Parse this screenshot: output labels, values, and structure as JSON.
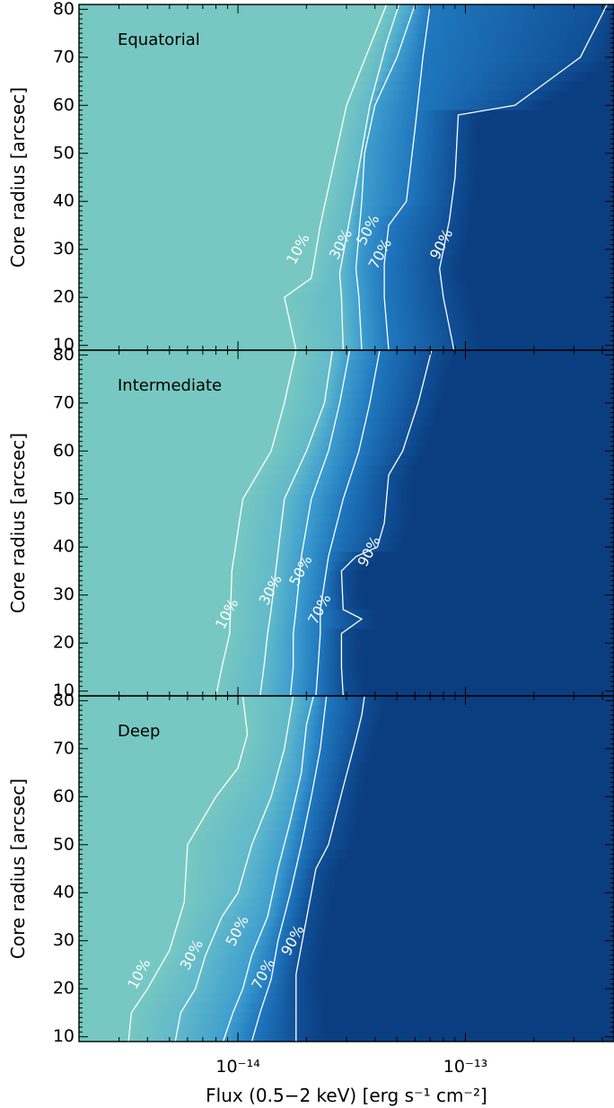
{
  "chart_data": {
    "type": "heatmap",
    "xlabel": "Flux (0.5−2 keV) [erg s⁻¹ cm⁻²]",
    "ylabel": "Core radius [arcsec]",
    "xscale": "log",
    "xlim": [
      2e-15,
      4.5e-13
    ],
    "ylim": [
      9,
      81
    ],
    "x_ticks": [
      {
        "value": 1e-14,
        "label": "10⁻¹⁴"
      },
      {
        "value": 1e-13,
        "label": "10⁻¹³"
      }
    ],
    "y_ticks": [
      10,
      20,
      30,
      40,
      50,
      60,
      70,
      80
    ],
    "colors": {
      "low": "#77c8c2",
      "mid": "#2a8fd0",
      "high": "#0b3e80",
      "contour": "#ffffff"
    },
    "panels": [
      {
        "label": "Equatorial",
        "contours": [
          {
            "level": "10%",
            "points": [
              [
                1.8e-14,
                9
              ],
              [
                1.6e-14,
                20
              ],
              [
                2.1e-14,
                24
              ],
              [
                2.3e-14,
                35
              ],
              [
                3e-14,
                60
              ],
              [
                4.5e-14,
                81
              ]
            ]
          },
          {
            "level": "30%",
            "points": [
              [
                2.9e-14,
                9
              ],
              [
                2.85e-14,
                20
              ],
              [
                2.8e-14,
                25
              ],
              [
                3.2e-14,
                40
              ],
              [
                3.8e-14,
                60
              ],
              [
                4.5e-14,
                73
              ],
              [
                5.1e-14,
                81
              ]
            ]
          },
          {
            "level": "50%",
            "points": [
              [
                3.5e-14,
                9
              ],
              [
                3.4e-14,
                20
              ],
              [
                3.3e-14,
                26
              ],
              [
                3.5e-14,
                40
              ],
              [
                3.6e-14,
                50
              ],
              [
                4e-14,
                60
              ],
              [
                5e-14,
                70
              ],
              [
                6e-14,
                81
              ]
            ]
          },
          {
            "level": "70%",
            "points": [
              [
                4.6e-14,
                9
              ],
              [
                4.4e-14,
                20
              ],
              [
                4.4e-14,
                27
              ],
              [
                4.6e-14,
                35
              ],
              [
                5.5e-14,
                40
              ],
              [
                6e-14,
                55
              ],
              [
                6.5e-14,
                70
              ],
              [
                7e-14,
                81
              ]
            ]
          },
          {
            "level": "90%",
            "points": [
              [
                8.9e-14,
                9
              ],
              [
                8e-14,
                20
              ],
              [
                7.7e-14,
                26
              ],
              [
                8.5e-14,
                36
              ],
              [
                9e-14,
                45
              ],
              [
                9.3e-14,
                58
              ],
              [
                1.65e-13,
                60
              ],
              [
                3.2e-13,
                70
              ],
              [
                4.2e-13,
                81
              ]
            ]
          }
        ],
        "contour_labels": [
          {
            "level": "10%",
            "x": 1.85e-14,
            "y": 30
          },
          {
            "level": "30%",
            "x": 2.85e-14,
            "y": 31
          },
          {
            "level": "50%",
            "x": 3.75e-14,
            "y": 34
          },
          {
            "level": "70%",
            "x": 4.25e-14,
            "y": 29
          },
          {
            "level": "90%",
            "x": 7.9e-14,
            "y": 31
          }
        ]
      },
      {
        "label": "Intermediate",
        "contours": [
          {
            "level": "10%",
            "points": [
              [
                8e-15,
                9
              ],
              [
                8.5e-15,
                15
              ],
              [
                9.2e-15,
                22
              ],
              [
                9.4e-15,
                35
              ],
              [
                1.05e-14,
                50
              ],
              [
                1.4e-14,
                60
              ],
              [
                1.6e-14,
                70
              ],
              [
                1.8e-14,
                81
              ]
            ]
          },
          {
            "level": "30%",
            "points": [
              [
                1.25e-14,
                9
              ],
              [
                1.3e-14,
                15
              ],
              [
                1.35e-14,
                22
              ],
              [
                1.4e-14,
                27
              ],
              [
                1.5e-14,
                39
              ],
              [
                1.6e-14,
                50
              ],
              [
                2e-14,
                60
              ],
              [
                2.4e-14,
                70
              ],
              [
                2.6e-14,
                81
              ]
            ]
          },
          {
            "level": "50%",
            "points": [
              [
                1.7e-14,
                9
              ],
              [
                1.75e-14,
                15
              ],
              [
                1.75e-14,
                22
              ],
              [
                1.8e-14,
                27
              ],
              [
                1.9e-14,
                38
              ],
              [
                2.1e-14,
                50
              ],
              [
                2.5e-14,
                60
              ],
              [
                2.8e-14,
                70
              ],
              [
                3.1e-14,
                81
              ]
            ]
          },
          {
            "level": "70%",
            "points": [
              [
                2.2e-14,
                9
              ],
              [
                2.25e-14,
                15
              ],
              [
                2.3e-14,
                22
              ],
              [
                2.3e-14,
                27
              ],
              [
                2.5e-14,
                38
              ],
              [
                2.9e-14,
                50
              ],
              [
                3.4e-14,
                60
              ],
              [
                3.8e-14,
                70
              ],
              [
                4.2e-14,
                81
              ]
            ]
          },
          {
            "level": "90%",
            "points": [
              [
                2.9e-14,
                9
              ],
              [
                2.85e-14,
                15
              ],
              [
                2.85e-14,
                22
              ],
              [
                3.5e-14,
                25
              ],
              [
                2.9e-14,
                27
              ],
              [
                2.85e-14,
                35
              ],
              [
                3.3e-14,
                38
              ],
              [
                4.1e-14,
                40
              ],
              [
                4.4e-14,
                45
              ],
              [
                4.6e-14,
                55
              ],
              [
                5.3e-14,
                60
              ],
              [
                6.2e-14,
                70
              ],
              [
                7.1e-14,
                81
              ]
            ]
          }
        ],
        "contour_labels": [
          {
            "level": "10%",
            "x": 9e-15,
            "y": 26
          },
          {
            "level": "30%",
            "x": 1.4e-14,
            "y": 31
          },
          {
            "level": "50%",
            "x": 1.9e-14,
            "y": 35
          },
          {
            "level": "70%",
            "x": 2.3e-14,
            "y": 27
          },
          {
            "level": "90%",
            "x": 3.8e-14,
            "y": 39
          }
        ]
      },
      {
        "label": "Deep",
        "contours": [
          {
            "level": "10%",
            "points": [
              [
                3.3e-15,
                9
              ],
              [
                3.4e-15,
                15
              ],
              [
                4e-15,
                20
              ],
              [
                5e-15,
                28
              ],
              [
                5.8e-15,
                38
              ],
              [
                6e-15,
                50
              ],
              [
                8e-15,
                60
              ],
              [
                1e-14,
                66
              ],
              [
                1.1e-14,
                73
              ],
              [
                1.05e-14,
                81
              ]
            ]
          },
          {
            "level": "30%",
            "points": [
              [
                5.3e-15,
                9
              ],
              [
                5.6e-15,
                15
              ],
              [
                6.5e-15,
                20
              ],
              [
                7.2e-15,
                27
              ],
              [
                8.5e-15,
                35
              ],
              [
                1e-14,
                40
              ],
              [
                1.15e-14,
                50
              ],
              [
                1.4e-14,
                60
              ],
              [
                1.6e-14,
                70
              ],
              [
                1.75e-14,
                81
              ]
            ]
          },
          {
            "level": "50%",
            "points": [
              [
                8.6e-15,
                9
              ],
              [
                9.5e-15,
                15
              ],
              [
                1.05e-14,
                20
              ],
              [
                1.15e-14,
                27
              ],
              [
                1.35e-14,
                35
              ],
              [
                1.5e-14,
                45
              ],
              [
                1.7e-14,
                55
              ],
              [
                1.9e-14,
                65
              ],
              [
                2e-14,
                75
              ],
              [
                2.15e-14,
                81
              ]
            ]
          },
          {
            "level": "70%",
            "points": [
              [
                1.15e-14,
                9
              ],
              [
                1.25e-14,
                15
              ],
              [
                1.4e-14,
                22
              ],
              [
                1.5e-14,
                30
              ],
              [
                1.7e-14,
                40
              ],
              [
                1.9e-14,
                50
              ],
              [
                2.1e-14,
                60
              ],
              [
                2.3e-14,
                70
              ],
              [
                2.45e-14,
                81
              ]
            ]
          },
          {
            "level": "90%",
            "points": [
              [
                1.8e-14,
                9
              ],
              [
                1.8e-14,
                15
              ],
              [
                1.8e-14,
                23
              ],
              [
                2.2e-14,
                45
              ],
              [
                2.5e-14,
                50
              ],
              [
                2.9e-14,
                62
              ],
              [
                3.3e-14,
                72
              ],
              [
                3.5e-14,
                77
              ],
              [
                3.6e-14,
                81
              ]
            ]
          }
        ],
        "contour_labels": [
          {
            "level": "10%",
            "x": 3.7e-15,
            "y": 23
          },
          {
            "level": "30%",
            "x": 6.3e-15,
            "y": 27
          },
          {
            "level": "50%",
            "x": 1e-14,
            "y": 32
          },
          {
            "level": "70%",
            "x": 1.3e-14,
            "y": 23
          },
          {
            "level": "90%",
            "x": 1.75e-14,
            "y": 30
          }
        ]
      }
    ]
  }
}
